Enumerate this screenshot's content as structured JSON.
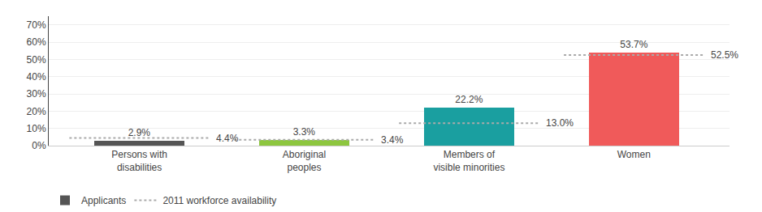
{
  "chart_data": {
    "type": "bar",
    "categories": [
      "Persons with\ndisabilities",
      "Aboriginal\npeoples",
      "Members of\nvisible minorities",
      "Women"
    ],
    "series": [
      {
        "name": "Applicants",
        "type": "bar",
        "colors": [
          "#555555",
          "#8dc63f",
          "#1a9fa0",
          "#f05a5a"
        ],
        "values": [
          2.9,
          3.3,
          22.2,
          53.7
        ],
        "value_labels": [
          "2.9%",
          "3.3%",
          "22.2%",
          "53.7%"
        ]
      },
      {
        "name": "2011 workforce availability",
        "type": "line",
        "line_style": "dotted",
        "color": "#aaaaaa",
        "values": [
          4.4,
          3.4,
          13.0,
          52.5
        ],
        "value_labels": [
          "4.4%",
          "3.4%",
          "13.0%",
          "52.5%"
        ]
      }
    ],
    "ylim": [
      0,
      75
    ],
    "yticks": [
      {
        "value": 0,
        "label": "0%"
      },
      {
        "value": 10,
        "label": "10%"
      },
      {
        "value": 20,
        "label": "20%"
      },
      {
        "value": 30,
        "label": "30%"
      },
      {
        "value": 40,
        "label": "40%"
      },
      {
        "value": 50,
        "label": "50%"
      },
      {
        "value": 60,
        "label": "60%"
      },
      {
        "value": 70,
        "label": "70%"
      }
    ],
    "grid": true,
    "legend": "bottom left",
    "data_labels": true
  }
}
